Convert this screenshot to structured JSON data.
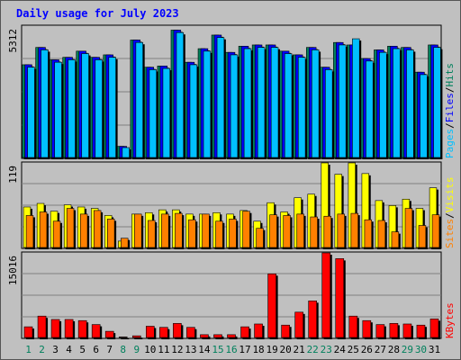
{
  "chart_data": {
    "type": "bar",
    "title": "Daily usage for July 2023",
    "categories": [
      "1",
      "2",
      "3",
      "4",
      "5",
      "6",
      "7",
      "8",
      "9",
      "10",
      "11",
      "12",
      "13",
      "14",
      "15",
      "16",
      "17",
      "18",
      "19",
      "20",
      "21",
      "22",
      "23",
      "24",
      "25",
      "26",
      "27",
      "28",
      "29",
      "30",
      "31"
    ],
    "weekend_days": [
      "1",
      "2",
      "8",
      "9",
      "15",
      "16",
      "22",
      "23",
      "29",
      "30"
    ],
    "colors": {
      "background": "#c0c0c0",
      "title": "#0000ff",
      "weekday_label": "#000000",
      "weekend_label": "#00805c",
      "hits": "#00805c",
      "files": "#0000ff",
      "pages": "#00c0ff",
      "visits": "#ffff00",
      "sites": "#ff8000",
      "kbytes": "#ff0000"
    },
    "panels": [
      {
        "id": "hits-files-pages",
        "ymax_label": "5312",
        "legend": [
          "Pages",
          "/",
          "Files",
          "/",
          "Hits"
        ],
        "ylim": [
          0,
          5312
        ],
        "series": [
          {
            "name": "Hits",
            "values": [
              3750,
              4450,
              3950,
              4050,
              4300,
              4050,
              4150,
              450,
              4750,
              3650,
              3700,
              5150,
              3850,
              4400,
              4950,
              4250,
              4500,
              4550,
              4550,
              4300,
              4150,
              4450,
              3650,
              4650,
              4550,
              4000,
              4350,
              4500,
              4450,
              3450,
              4550
            ]
          },
          {
            "name": "Files",
            "values": [
              3750,
              4450,
              3950,
              4050,
              4300,
              4050,
              4150,
              450,
              4750,
              3650,
              3700,
              5150,
              3850,
              4400,
              4950,
              4250,
              4500,
              4550,
              4550,
              4300,
              4150,
              4450,
              3650,
              4650,
              4550,
              4000,
              4350,
              4500,
              4450,
              3450,
              4550
            ]
          },
          {
            "name": "Pages",
            "values": [
              3650,
              4350,
              3850,
              3950,
              4200,
              3950,
              4050,
              400,
              4650,
              3550,
              3600,
              5050,
              3750,
              4300,
              4850,
              4150,
              4400,
              4450,
              4450,
              4200,
              4050,
              4350,
              3550,
              4550,
              4800,
              3900,
              4250,
              4400,
              4350,
              3350,
              4450
            ]
          }
        ]
      },
      {
        "id": "visits-sites",
        "ymax_label": "119",
        "legend": [
          "Sites",
          "/",
          "Visits"
        ],
        "ylim": [
          0,
          119
        ],
        "series": [
          {
            "name": "Visits",
            "values": [
              57,
              62,
              51,
              60,
              57,
              55,
              45,
              9,
              47,
              49,
              53,
              53,
              47,
              47,
              49,
              47,
              52,
              37,
              63,
              50,
              70,
              75,
              119,
              103,
              119,
              104,
              66,
              59,
              68,
              55,
              84
            ]
          },
          {
            "name": "Sites",
            "values": [
              45,
              50,
              37,
              55,
              47,
              52,
              40,
              13,
              47,
              38,
              47,
              48,
              39,
              47,
              37,
              40,
              51,
              27,
              46,
              45,
              47,
              43,
              44,
              47,
              48,
              39,
              38,
              22,
              55,
              31,
              46
            ]
          }
        ]
      },
      {
        "id": "kbytes",
        "ymax_label": "15016",
        "legend": [
          "KBytes"
        ],
        "ylim": [
          0,
          15016
        ],
        "series": [
          {
            "name": "KBytes",
            "values": [
              1900,
              3800,
              3200,
              3200,
              3000,
              2300,
              1100,
              100,
              300,
              2000,
              1800,
              2500,
              1800,
              500,
              500,
              500,
              1900,
              2400,
              11300,
              2200,
              4500,
              6500,
              15016,
              14000,
              3800,
              3000,
              2300,
              2500,
              2400,
              2200,
              3300
            ]
          }
        ]
      }
    ]
  }
}
